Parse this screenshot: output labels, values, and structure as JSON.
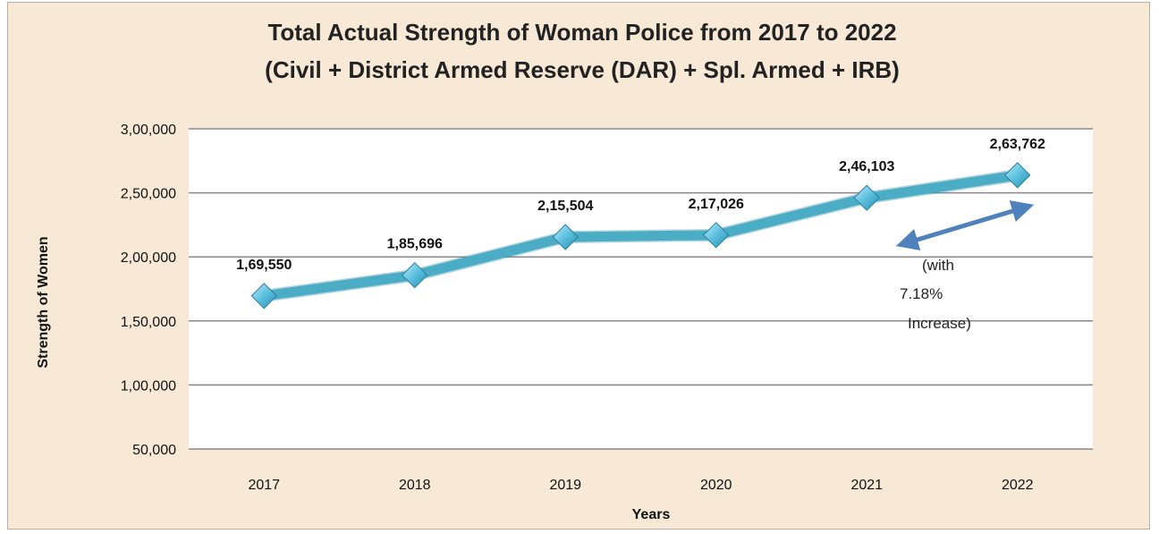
{
  "colors": {
    "background": "#f7e9d6",
    "plot_area": "#ffffff",
    "gridline": "#888888",
    "series_line": "#4bacc6",
    "marker": "#5bc0de",
    "arrow": "#4f81bd"
  },
  "chart_data": {
    "type": "line",
    "title": "Total Actual Strength of Woman Police from 2017 to 2022",
    "subtitle": "(Civil + District Armed Reserve (DAR) + Spl. Armed + IRB)",
    "xlabel": "Years",
    "ylabel": "Strength of Women",
    "categories": [
      "2017",
      "2018",
      "2019",
      "2020",
      "2021",
      "2022"
    ],
    "values": [
      169550,
      185696,
      215504,
      217026,
      246103,
      263762
    ],
    "data_labels": [
      "1,69,550",
      "1,85,696",
      "2,15,504",
      "2,17,026",
      "2,46,103",
      "2,63,762"
    ],
    "ylim": [
      50000,
      300000
    ],
    "yticks": [
      50000,
      100000,
      150000,
      200000,
      250000,
      300000
    ],
    "ytick_labels": [
      "50,000",
      "1,00,000",
      "1,50,000",
      "2,00,000",
      "2,50,000",
      "3,00,000"
    ],
    "grid": true,
    "legend": "none",
    "annotation": {
      "lines": [
        "(with",
        "7.18%",
        "Increase)"
      ],
      "arrow": "double-headed between 2021 and 2022"
    }
  }
}
